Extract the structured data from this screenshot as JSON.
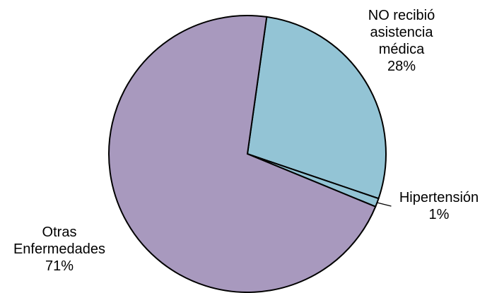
{
  "chart_data": {
    "type": "pie",
    "slices": [
      {
        "lines": [
          "NO recibió",
          "asistencia",
          "médica",
          "28%"
        ],
        "value": 28,
        "color": "#93C4D5"
      },
      {
        "lines": [
          "Hipertensión",
          "1%"
        ],
        "value": 1,
        "color": "#93C4D5"
      },
      {
        "lines": [
          "Otras",
          "Enfermedades",
          "71%"
        ],
        "value": 71,
        "color": "#A899BE"
      }
    ],
    "legend": "none",
    "slice_outline_color": "#000000"
  }
}
